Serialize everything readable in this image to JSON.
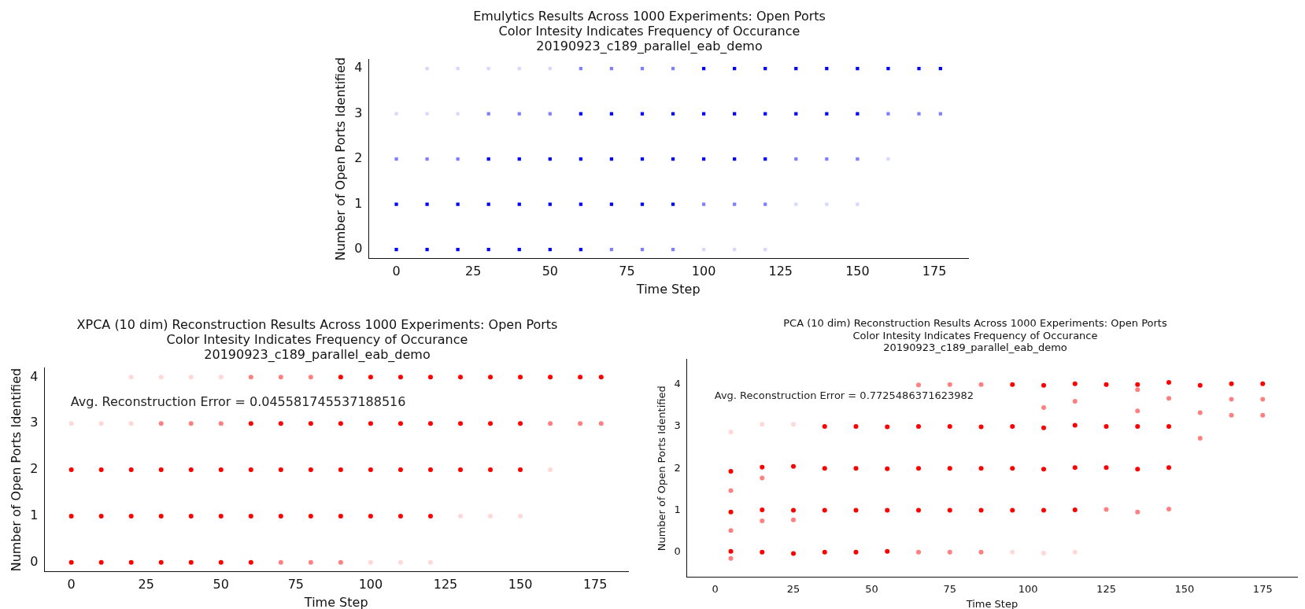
{
  "chart_data": [
    {
      "type": "scatter",
      "title": "Emulytics Results Across 1000 Experiments: Open Ports\nColor Intesity Indicates Frequency of Occurance\n20190923_c189_parallel_eab_demo",
      "xlabel": "Time Step",
      "ylabel": "Number of Open Ports Identified",
      "xlim": [
        -9,
        186
      ],
      "ylim": [
        -0.2,
        4.2
      ],
      "xticks": [
        0,
        25,
        50,
        75,
        100,
        125,
        150,
        175
      ],
      "yticks": [
        0,
        1,
        2,
        3,
        4
      ],
      "marker": "square",
      "grid": false,
      "legend": false,
      "series": [
        {
          "color": "#0000ff",
          "x": [
            100,
            110,
            120,
            130,
            140,
            150,
            160,
            170,
            177,
            60,
            70,
            80,
            90,
            100,
            110,
            120,
            130,
            140,
            150,
            30,
            40,
            50,
            60,
            70,
            80,
            90,
            100,
            110,
            120,
            0,
            10,
            20,
            30,
            40,
            50,
            60,
            70,
            80,
            90,
            0,
            10,
            20,
            30,
            40,
            50,
            60
          ],
          "values": [
            4,
            4,
            4,
            4,
            4,
            4,
            4,
            4,
            4,
            3,
            3,
            3,
            3,
            3,
            3,
            3,
            3,
            3,
            3,
            2,
            2,
            2,
            2,
            2,
            2,
            2,
            2,
            2,
            2,
            1,
            1,
            1,
            1,
            1,
            1,
            1,
            1,
            1,
            1,
            0,
            0,
            0,
            0,
            0,
            0,
            0
          ]
        },
        {
          "color": "#8080ff",
          "x": [
            60,
            70,
            80,
            90,
            30,
            40,
            50,
            160,
            170,
            177,
            0,
            10,
            20,
            130,
            140,
            150,
            100,
            110,
            120,
            70,
            80,
            90
          ],
          "values": [
            4,
            4,
            4,
            4,
            3,
            3,
            3,
            3,
            3,
            3,
            2,
            2,
            2,
            2,
            2,
            2,
            1,
            1,
            1,
            0,
            0,
            0
          ]
        },
        {
          "color": "#d8d8ff",
          "x": [
            10,
            20,
            30,
            40,
            50,
            0,
            10,
            20,
            160,
            130,
            140,
            150,
            100,
            110,
            120
          ],
          "values": [
            4,
            4,
            4,
            4,
            4,
            3,
            3,
            3,
            2,
            1,
            1,
            1,
            0,
            0,
            0
          ]
        }
      ]
    },
    {
      "type": "scatter",
      "title": "XPCA (10 dim) Reconstruction Results Across 1000 Experiments: Open Ports\nColor Intesity Indicates Frequency of Occurance\n20190923_c189_parallel_eab_demo",
      "xlabel": "Time Step",
      "ylabel": "Number of Open Ports Identified",
      "xlim": [
        -9,
        186
      ],
      "ylim": [
        -0.2,
        4.2
      ],
      "xticks": [
        0,
        25,
        50,
        75,
        100,
        125,
        150,
        175
      ],
      "yticks": [
        0,
        1,
        2,
        3,
        4
      ],
      "marker": "circle",
      "grid": false,
      "legend": false,
      "annotations": [
        "Avg. Reconstruction Error = 0.045581745537188516"
      ],
      "series": [
        {
          "color": "#ff0000",
          "x": [
            90,
            100,
            110,
            120,
            130,
            140,
            150,
            160,
            170,
            177,
            60,
            70,
            80,
            90,
            100,
            110,
            120,
            130,
            140,
            150,
            0,
            10,
            20,
            30,
            40,
            50,
            60,
            70,
            80,
            90,
            100,
            110,
            120,
            130,
            140,
            150,
            0,
            10,
            20,
            30,
            40,
            50,
            60,
            70,
            80,
            90,
            100,
            110,
            120,
            0,
            10,
            20,
            30,
            40,
            50,
            60
          ],
          "values": [
            4,
            4,
            4,
            4,
            4,
            4,
            4,
            4,
            4,
            4,
            3,
            3,
            3,
            3,
            3,
            3,
            3,
            3,
            3,
            3,
            2,
            2,
            2,
            2,
            2,
            2,
            2,
            2,
            2,
            2,
            2,
            2,
            2,
            2,
            2,
            2,
            1,
            1,
            1,
            1,
            1,
            1,
            1,
            1,
            1,
            1,
            1,
            1,
            1,
            0,
            0,
            0,
            0,
            0,
            0,
            0
          ]
        },
        {
          "color": "#ff8080",
          "x": [
            60,
            70,
            80,
            30,
            40,
            50,
            160,
            170,
            177,
            70,
            80,
            90
          ],
          "values": [
            4,
            4,
            4,
            3,
            3,
            3,
            3,
            3,
            3,
            0,
            0,
            0
          ]
        },
        {
          "color": "#ffd8d8",
          "x": [
            20,
            30,
            40,
            50,
            0,
            10,
            20,
            160,
            130,
            140,
            150,
            100,
            110,
            120
          ],
          "values": [
            4,
            4,
            4,
            4,
            3,
            3,
            3,
            2,
            1,
            1,
            1,
            0,
            0,
            0
          ]
        }
      ]
    },
    {
      "type": "scatter",
      "title": "PCA (10 dim) Reconstruction Results Across 1000 Experiments: Open Ports\nColor Intesity Indicates Frequency of Occurance\n20190923_c189_parallel_eab_demo",
      "xlabel": "Time Step",
      "ylabel": "Number of Open Ports Identified",
      "xlim": [
        -9,
        186
      ],
      "ylim": [
        -0.6,
        4.6
      ],
      "xticks": [
        0,
        25,
        50,
        75,
        100,
        125,
        150,
        175
      ],
      "yticks": [
        0,
        1,
        2,
        3,
        4
      ],
      "marker": "circle",
      "grid": false,
      "legend": false,
      "annotations": [
        "Avg. Reconstruction Error = 0.7725486371623982"
      ],
      "series": [
        {
          "color": "#ff0000",
          "x": [
            5,
            15,
            25,
            35,
            45,
            55,
            5,
            15,
            25,
            35,
            45,
            55,
            65,
            75,
            85,
            95,
            105,
            115,
            5,
            15,
            25,
            35,
            45,
            55,
            65,
            75,
            85,
            95,
            105,
            115,
            125,
            135,
            145,
            35,
            45,
            55,
            65,
            75,
            85,
            95,
            105,
            115,
            125,
            135,
            145,
            95,
            105,
            115,
            125,
            135,
            145,
            155,
            165,
            175
          ],
          "values": [
            0.02,
            0,
            -0.03,
            0,
            0,
            0.02,
            0.96,
            1.01,
            1,
            1,
            1,
            1,
            1,
            1,
            1,
            1,
            1,
            1.01,
            1.93,
            2.03,
            2.05,
            2,
            2,
            1.99,
            2,
            2,
            2,
            2,
            1.98,
            2.02,
            2.02,
            1.98,
            2.02,
            3,
            3,
            2.99,
            3,
            3,
            2.99,
            3,
            2.97,
            3.03,
            3,
            3,
            3,
            4,
            3.98,
            4.02,
            4,
            4,
            4.05,
            3.98,
            4.02,
            4.02
          ]
        },
        {
          "color": "#ff8080",
          "x": [
            65,
            75,
            85,
            125,
            135,
            145,
            65,
            75,
            85,
            155,
            155,
            165,
            175,
            165,
            175,
            5,
            15,
            25,
            15,
            5,
            5,
            135,
            145,
            135,
            115,
            105
          ],
          "values": [
            0,
            0,
            0,
            1.02,
            0.96,
            1.03,
            3.99,
            4,
            4,
            3.33,
            2.72,
            3.65,
            3.65,
            3.27,
            3.27,
            0.52,
            0.75,
            0.77,
            1.77,
            1.47,
            -0.15,
            3.37,
            3.67,
            3.88,
            3.6,
            3.45
          ]
        },
        {
          "color": "#ffd8d8",
          "x": [
            5,
            15,
            25,
            95,
            105,
            115
          ],
          "values": [
            2.87,
            3.05,
            3.05,
            0,
            -0.02,
            0
          ]
        }
      ]
    }
  ]
}
